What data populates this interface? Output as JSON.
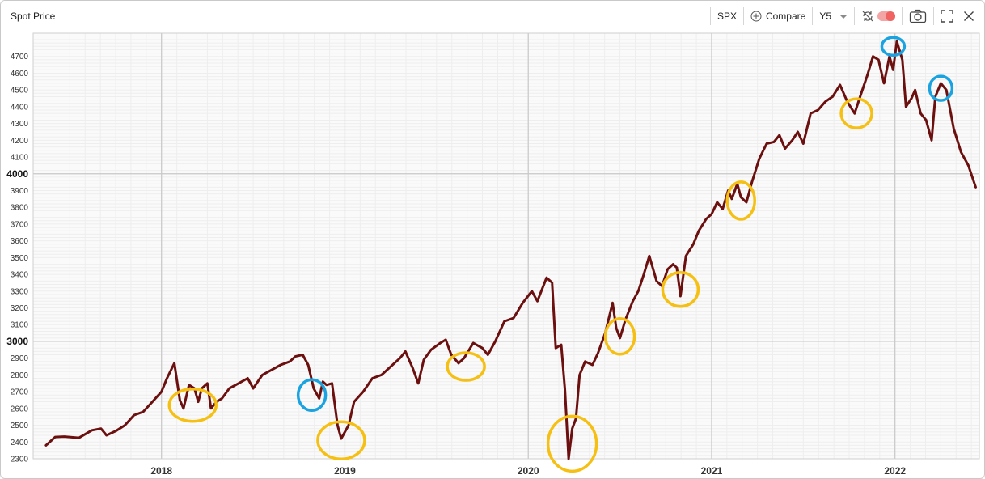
{
  "window": {
    "title": "Spot Price"
  },
  "toolbar": {
    "ticker": "SPX",
    "compare_label": "Compare",
    "range_label": "Y5",
    "icons": [
      "compare-plus-icon",
      "chevron-down-icon",
      "no-sync-icon",
      "toggle-switch",
      "camera-icon",
      "fullscreen-icon",
      "close-icon"
    ]
  },
  "colors": {
    "series": "#6b0f0f",
    "circle_yellow": "#f5c013",
    "circle_blue": "#1aa3e0",
    "toggle": "#f06363"
  },
  "chart_data": {
    "type": "line",
    "title": "",
    "xlabel": "",
    "ylabel": "",
    "ylim": [
      2300,
      4800
    ],
    "grid": true,
    "yticks": [
      2300,
      2400,
      2500,
      2600,
      2700,
      2800,
      2900,
      3000,
      3100,
      3200,
      3300,
      3400,
      3500,
      3600,
      3700,
      3800,
      3900,
      4000,
      4100,
      4200,
      4300,
      4400,
      4500,
      4600,
      4700
    ],
    "yticks_major": [
      3000,
      4000
    ],
    "xticks": [
      {
        "value": 2018.0,
        "label": "2018"
      },
      {
        "value": 2019.0,
        "label": "2019"
      },
      {
        "value": 2020.0,
        "label": "2020"
      },
      {
        "value": 2021.0,
        "label": "2021"
      },
      {
        "value": 2022.0,
        "label": "2022"
      }
    ],
    "series": [
      {
        "name": "SPX",
        "points": [
          [
            2017.37,
            2380
          ],
          [
            2017.42,
            2430
          ],
          [
            2017.47,
            2432
          ],
          [
            2017.55,
            2425
          ],
          [
            2017.62,
            2470
          ],
          [
            2017.67,
            2480
          ],
          [
            2017.7,
            2440
          ],
          [
            2017.75,
            2465
          ],
          [
            2017.8,
            2500
          ],
          [
            2017.85,
            2560
          ],
          [
            2017.9,
            2580
          ],
          [
            2017.95,
            2640
          ],
          [
            2018.0,
            2700
          ],
          [
            2018.03,
            2780
          ],
          [
            2018.07,
            2870
          ],
          [
            2018.1,
            2650
          ],
          [
            2018.12,
            2600
          ],
          [
            2018.15,
            2740
          ],
          [
            2018.18,
            2720
          ],
          [
            2018.2,
            2640
          ],
          [
            2018.22,
            2720
          ],
          [
            2018.25,
            2750
          ],
          [
            2018.27,
            2600
          ],
          [
            2018.3,
            2640
          ],
          [
            2018.33,
            2660
          ],
          [
            2018.37,
            2720
          ],
          [
            2018.42,
            2750
          ],
          [
            2018.47,
            2780
          ],
          [
            2018.5,
            2720
          ],
          [
            2018.55,
            2800
          ],
          [
            2018.6,
            2830
          ],
          [
            2018.65,
            2860
          ],
          [
            2018.7,
            2880
          ],
          [
            2018.73,
            2910
          ],
          [
            2018.77,
            2920
          ],
          [
            2018.8,
            2860
          ],
          [
            2018.83,
            2720
          ],
          [
            2018.86,
            2660
          ],
          [
            2018.88,
            2760
          ],
          [
            2018.9,
            2740
          ],
          [
            2018.93,
            2750
          ],
          [
            2018.96,
            2500
          ],
          [
            2018.98,
            2420
          ],
          [
            2019.02,
            2500
          ],
          [
            2019.05,
            2640
          ],
          [
            2019.1,
            2700
          ],
          [
            2019.15,
            2780
          ],
          [
            2019.2,
            2800
          ],
          [
            2019.25,
            2850
          ],
          [
            2019.3,
            2900
          ],
          [
            2019.33,
            2940
          ],
          [
            2019.37,
            2840
          ],
          [
            2019.4,
            2750
          ],
          [
            2019.43,
            2890
          ],
          [
            2019.47,
            2950
          ],
          [
            2019.52,
            2990
          ],
          [
            2019.55,
            3010
          ],
          [
            2019.58,
            2920
          ],
          [
            2019.62,
            2870
          ],
          [
            2019.65,
            2900
          ],
          [
            2019.7,
            2990
          ],
          [
            2019.75,
            2960
          ],
          [
            2019.78,
            2920
          ],
          [
            2019.82,
            3000
          ],
          [
            2019.87,
            3120
          ],
          [
            2019.92,
            3140
          ],
          [
            2019.97,
            3230
          ],
          [
            2020.02,
            3300
          ],
          [
            2020.05,
            3240
          ],
          [
            2020.1,
            3380
          ],
          [
            2020.13,
            3350
          ],
          [
            2020.15,
            2960
          ],
          [
            2020.18,
            2980
          ],
          [
            2020.2,
            2710
          ],
          [
            2020.22,
            2300
          ],
          [
            2020.24,
            2480
          ],
          [
            2020.26,
            2540
          ],
          [
            2020.28,
            2800
          ],
          [
            2020.31,
            2880
          ],
          [
            2020.35,
            2860
          ],
          [
            2020.38,
            2930
          ],
          [
            2020.42,
            3050
          ],
          [
            2020.46,
            3230
          ],
          [
            2020.48,
            3080
          ],
          [
            2020.5,
            3020
          ],
          [
            2020.53,
            3130
          ],
          [
            2020.57,
            3240
          ],
          [
            2020.6,
            3300
          ],
          [
            2020.63,
            3400
          ],
          [
            2020.66,
            3510
          ],
          [
            2020.7,
            3360
          ],
          [
            2020.73,
            3330
          ],
          [
            2020.76,
            3430
          ],
          [
            2020.79,
            3460
          ],
          [
            2020.81,
            3440
          ],
          [
            2020.83,
            3270
          ],
          [
            2020.86,
            3510
          ],
          [
            2020.9,
            3580
          ],
          [
            2020.93,
            3660
          ],
          [
            2020.97,
            3730
          ],
          [
            2021.0,
            3760
          ],
          [
            2021.03,
            3830
          ],
          [
            2021.06,
            3790
          ],
          [
            2021.09,
            3900
          ],
          [
            2021.11,
            3850
          ],
          [
            2021.14,
            3940
          ],
          [
            2021.16,
            3860
          ],
          [
            2021.19,
            3830
          ],
          [
            2021.22,
            3950
          ],
          [
            2021.26,
            4090
          ],
          [
            2021.3,
            4180
          ],
          [
            2021.34,
            4190
          ],
          [
            2021.37,
            4230
          ],
          [
            2021.4,
            4150
          ],
          [
            2021.44,
            4200
          ],
          [
            2021.47,
            4250
          ],
          [
            2021.5,
            4180
          ],
          [
            2021.54,
            4360
          ],
          [
            2021.58,
            4380
          ],
          [
            2021.62,
            4430
          ],
          [
            2021.66,
            4460
          ],
          [
            2021.7,
            4530
          ],
          [
            2021.74,
            4430
          ],
          [
            2021.78,
            4360
          ],
          [
            2021.81,
            4460
          ],
          [
            2021.85,
            4590
          ],
          [
            2021.88,
            4700
          ],
          [
            2021.91,
            4680
          ],
          [
            2021.94,
            4540
          ],
          [
            2021.97,
            4700
          ],
          [
            2021.99,
            4620
          ],
          [
            2022.01,
            4790
          ],
          [
            2022.04,
            4680
          ],
          [
            2022.06,
            4400
          ],
          [
            2022.09,
            4450
          ],
          [
            2022.11,
            4500
          ],
          [
            2022.14,
            4360
          ],
          [
            2022.17,
            4320
          ],
          [
            2022.2,
            4200
          ],
          [
            2022.22,
            4460
          ],
          [
            2022.25,
            4540
          ],
          [
            2022.28,
            4500
          ],
          [
            2022.32,
            4270
          ],
          [
            2022.36,
            4130
          ],
          [
            2022.4,
            4050
          ],
          [
            2022.44,
            3920
          ]
        ]
      }
    ],
    "annotations": [
      {
        "type": "circle",
        "color": "yellow",
        "x": 2018.17,
        "y": 2620
      },
      {
        "type": "circle",
        "color": "blue",
        "x": 2018.82,
        "y": 2680
      },
      {
        "type": "circle",
        "color": "yellow",
        "x": 2018.98,
        "y": 2410
      },
      {
        "type": "circle",
        "color": "yellow",
        "x": 2019.66,
        "y": 2850
      },
      {
        "type": "circle",
        "color": "yellow",
        "x": 2020.24,
        "y": 2390
      },
      {
        "type": "circle",
        "color": "yellow",
        "x": 2020.5,
        "y": 3030
      },
      {
        "type": "circle",
        "color": "yellow",
        "x": 2020.83,
        "y": 3310
      },
      {
        "type": "circle",
        "color": "yellow",
        "x": 2021.16,
        "y": 3840
      },
      {
        "type": "circle",
        "color": "yellow",
        "x": 2021.79,
        "y": 4360
      },
      {
        "type": "circle",
        "color": "blue",
        "x": 2021.99,
        "y": 4760
      },
      {
        "type": "circle",
        "color": "blue",
        "x": 2022.25,
        "y": 4510
      }
    ]
  }
}
